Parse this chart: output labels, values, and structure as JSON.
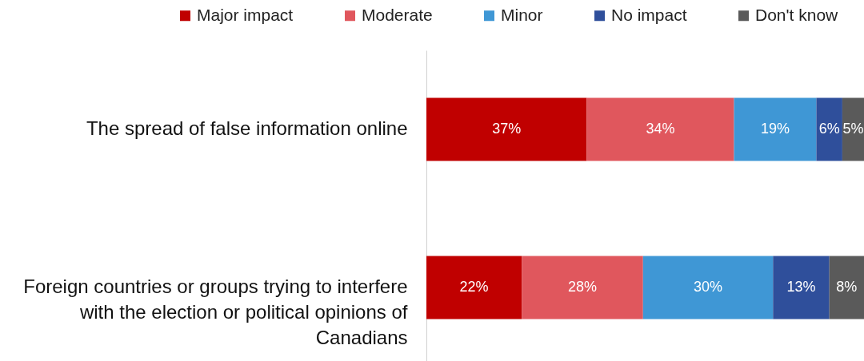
{
  "chart_data": {
    "type": "bar",
    "orientation": "horizontal",
    "stacked": true,
    "legend": "top left",
    "categories": [
      "The spread of false information online",
      "Foreign countries or groups trying to interfere with the election or political opinions of Canadians"
    ],
    "series": [
      {
        "name": "Major impact",
        "color": "#c00000",
        "values": [
          37,
          22
        ],
        "value_labels": [
          "37%",
          "22%"
        ]
      },
      {
        "name": "Moderate",
        "color": "#e0575d",
        "values": [
          34,
          28
        ],
        "value_labels": [
          "34%",
          "28%"
        ]
      },
      {
        "name": "Minor",
        "color": "#3f97d5",
        "values": [
          19,
          30
        ],
        "value_labels": [
          "19%",
          "30%"
        ]
      },
      {
        "name": "No impact",
        "color": "#2f4f9b",
        "values": [
          6,
          13
        ],
        "value_labels": [
          "6%",
          "13%"
        ]
      },
      {
        "name": "Don't know",
        "color": "#5a5a5a",
        "values": [
          5,
          8
        ],
        "value_labels": [
          "5%",
          "8%"
        ]
      }
    ]
  }
}
